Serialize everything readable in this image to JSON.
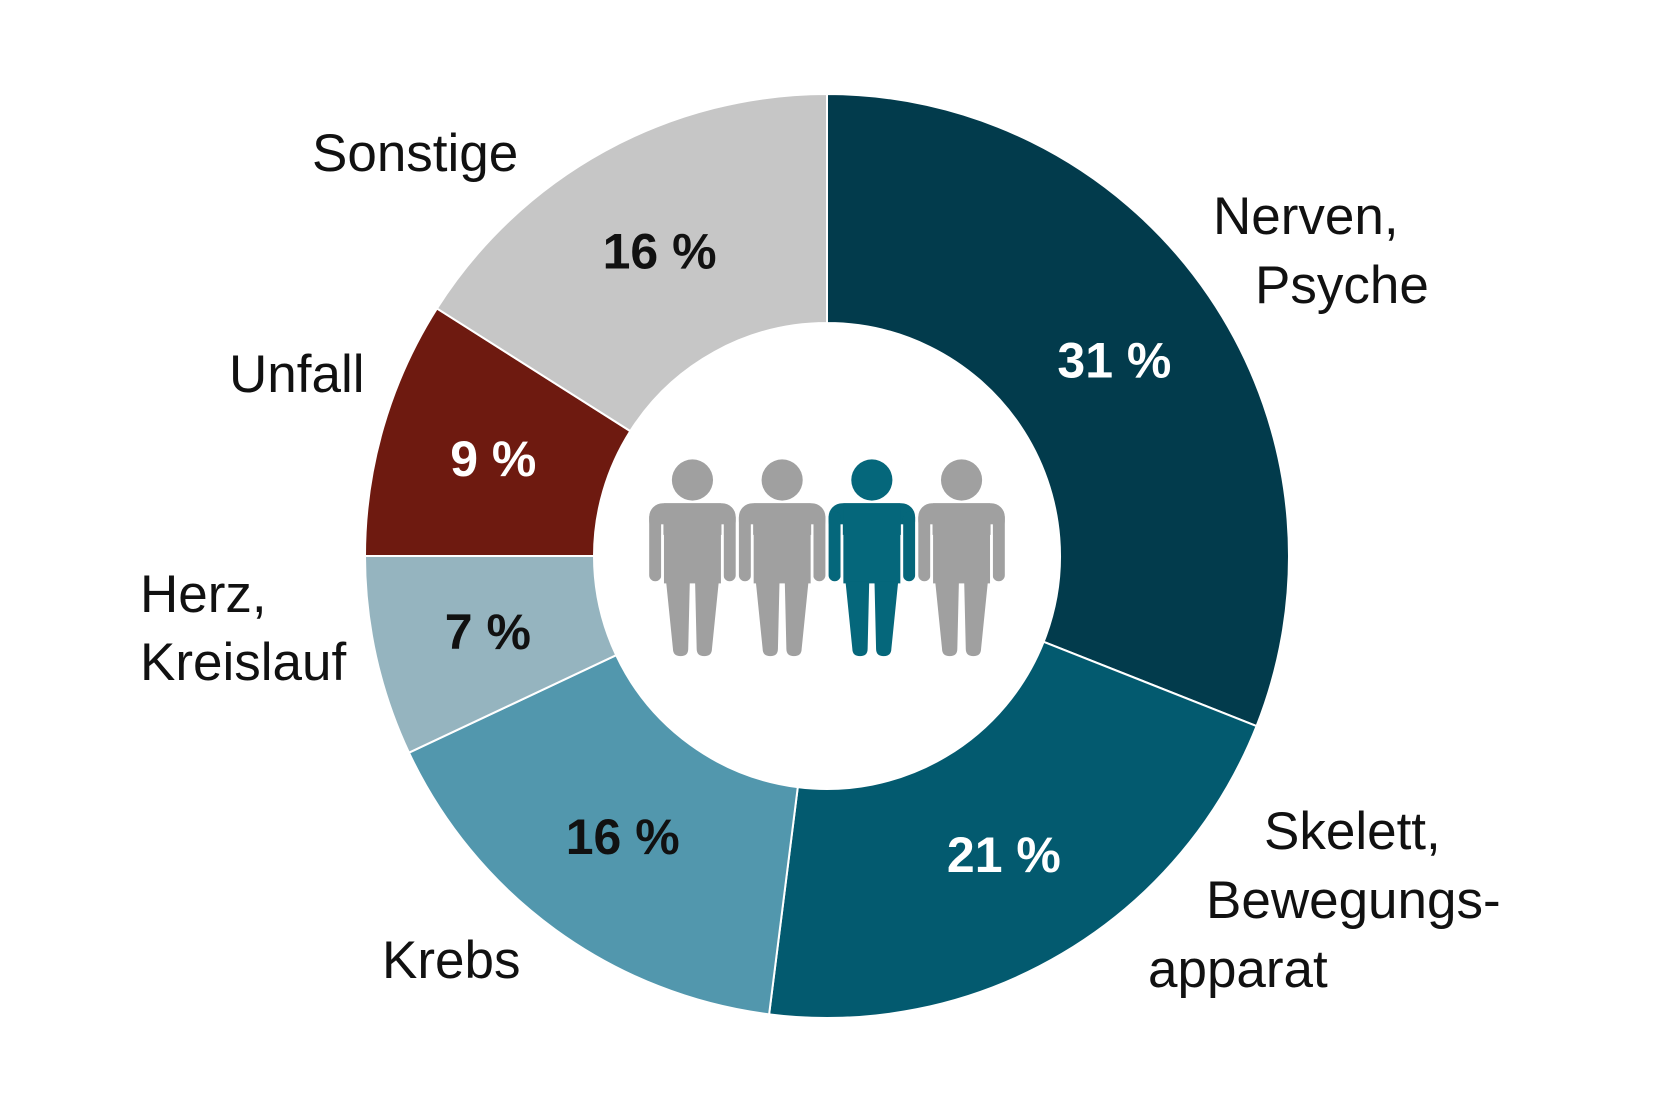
{
  "chart_data": {
    "type": "pie",
    "donut": true,
    "start": "top",
    "direction": "clockwise",
    "unit": "%",
    "slices": [
      {
        "label_lines": [
          "Nerven,",
          "Psyche"
        ],
        "value": 31,
        "value_label": "31 %",
        "color": "#023b4c",
        "value_label_color": "#ffffff"
      },
      {
        "label_lines": [
          "Skelett,",
          "Bewegungs-",
          "apparat"
        ],
        "value": 21,
        "value_label": "21 %",
        "color": "#035a6f",
        "value_label_color": "#ffffff"
      },
      {
        "label_lines": [
          "Krebs"
        ],
        "value": 16,
        "value_label": "16 %",
        "color": "#5297ad",
        "value_label_color": "#111111"
      },
      {
        "label_lines": [
          "Herz,",
          "Kreislauf"
        ],
        "value": 7,
        "value_label": "7 %",
        "color": "#95b4bf",
        "value_label_color": "#111111"
      },
      {
        "label_lines": [
          "Unfall"
        ],
        "value": 9,
        "value_label": "9 %",
        "color": "#6e1a10",
        "value_label_color": "#ffffff"
      },
      {
        "label_lines": [
          "Sonstige"
        ],
        "value": 16,
        "value_label": "16 %",
        "color": "#c6c6c6",
        "value_label_color": "#111111"
      }
    ]
  },
  "center_icon": {
    "name": "people-group-icon",
    "figures": [
      {
        "icon": "person-icon",
        "color": "#a0a0a0",
        "highlighted": false
      },
      {
        "icon": "person-icon",
        "color": "#a0a0a0",
        "highlighted": false
      },
      {
        "icon": "person-icon",
        "color": "#05677b",
        "highlighted": true
      },
      {
        "icon": "person-icon",
        "color": "#a0a0a0",
        "highlighted": false
      }
    ]
  },
  "colors": {
    "text": "#111111",
    "background": "#ffffff",
    "separator": "#ffffff"
  }
}
